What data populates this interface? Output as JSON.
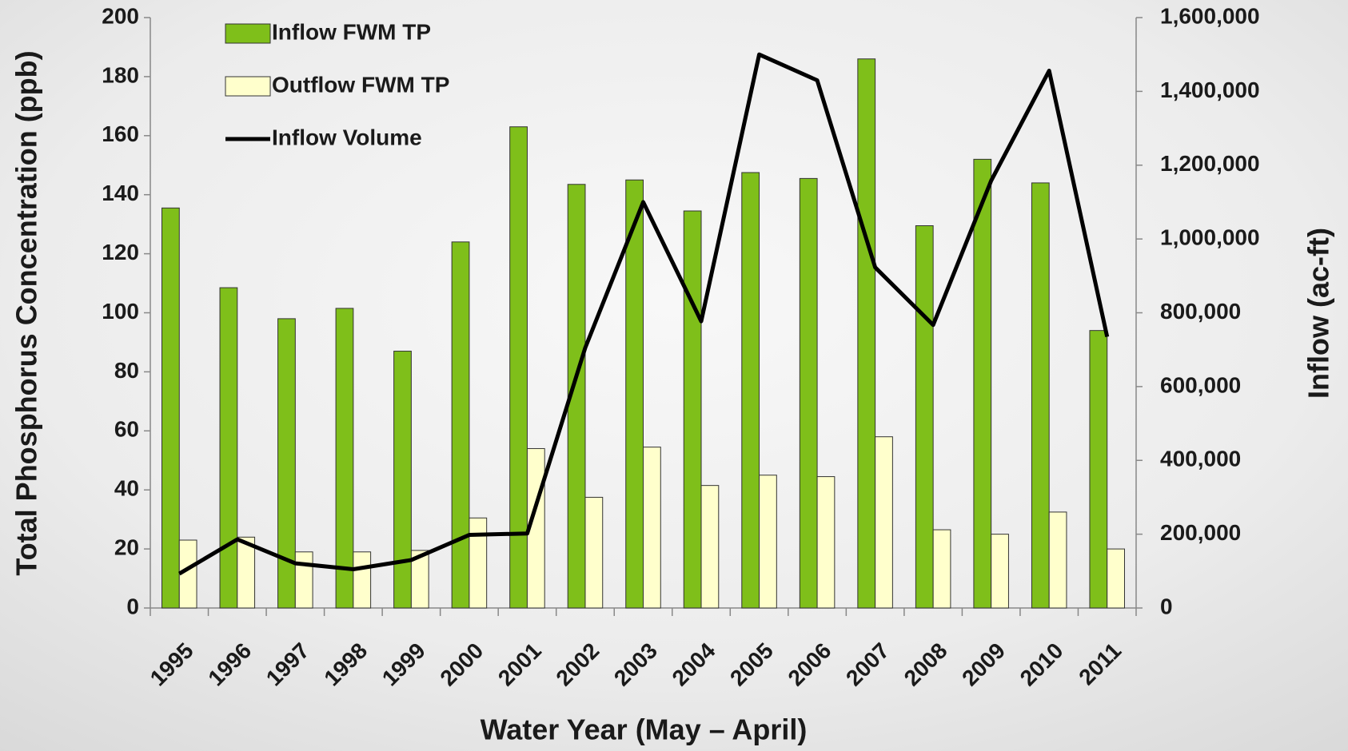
{
  "chart_data": {
    "type": "bar",
    "ylabel": "Total Phosphorus Concentration (ppb)",
    "y2label": "Inflow (ac-ft)",
    "xlabel": "Water Year (May – April)",
    "categories": [
      "1995",
      "1996",
      "1997",
      "1998",
      "1999",
      "2000",
      "2001",
      "2002",
      "2003",
      "2004",
      "2005",
      "2006",
      "2007",
      "2008",
      "2009",
      "2010",
      "2011"
    ],
    "series": [
      {
        "name": "Inflow FWM TP",
        "color": "#7fbf1a",
        "type": "bar",
        "values": [
          135.5,
          108.5,
          98,
          101.5,
          87,
          124,
          163,
          143.5,
          145,
          134.5,
          147.5,
          145.5,
          186,
          129.5,
          152,
          144,
          94
        ]
      },
      {
        "name": "Outflow FWM TP",
        "color": "#ffffcc",
        "type": "bar",
        "values": [
          23,
          24,
          19,
          19,
          19.5,
          30.5,
          54,
          37.5,
          54.5,
          41.5,
          45,
          44.5,
          58,
          26.5,
          25,
          32.5,
          20
        ]
      },
      {
        "name": "Inflow Volume",
        "color": "#000000",
        "type": "line",
        "axis": "y2",
        "values": [
          93000,
          186000,
          121000,
          105000,
          130000,
          198000,
          202000,
          705000,
          1100000,
          777000,
          1500000,
          1430000,
          923000,
          767000,
          1158000,
          1456000,
          735000
        ]
      }
    ],
    "ylim": [
      0,
      200
    ],
    "yticks": [
      0,
      20,
      40,
      60,
      80,
      100,
      120,
      140,
      160,
      180,
      200
    ],
    "y2lim": [
      0,
      1600000
    ],
    "y2ticks": [
      0,
      {
        "value": 200000,
        "label": "200,000"
      },
      {
        "value": 400000,
        "label": "400,000"
      },
      {
        "value": 600000,
        "label": "600,000"
      },
      {
        "value": 800000,
        "label": "800,000"
      },
      {
        "value": 1000000,
        "label": "1,000,000"
      },
      {
        "value": 1200000,
        "label": "1,200,000"
      },
      {
        "value": 1400000,
        "label": "1,400,000"
      },
      {
        "value": 1600000,
        "label": "1,600,000"
      }
    ],
    "legend": "upper left"
  }
}
